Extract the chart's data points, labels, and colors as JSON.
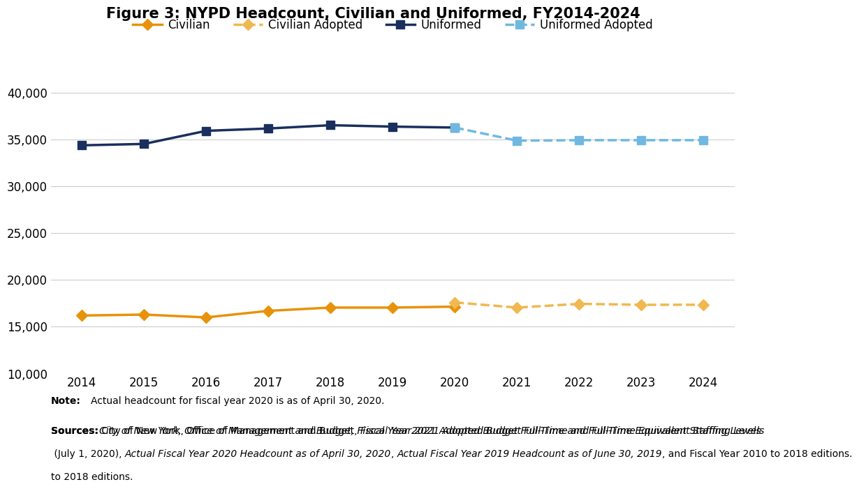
{
  "title": "Figure 3: NYPD Headcount, Civilian and Uniformed, FY2014-2024",
  "civilian_years": [
    2014,
    2015,
    2016,
    2017,
    2018,
    2019,
    2020
  ],
  "civilian_values": [
    16200,
    16300,
    16000,
    16700,
    17050,
    17050,
    17150
  ],
  "civilian_adopted_years": [
    2020,
    2021,
    2022,
    2023,
    2024
  ],
  "civilian_adopted_values": [
    17600,
    17050,
    17450,
    17350,
    17350
  ],
  "uniformed_years": [
    2014,
    2015,
    2016,
    2017,
    2018,
    2019,
    2020
  ],
  "uniformed_values": [
    34400,
    34550,
    35950,
    36200,
    36550,
    36400,
    36300
  ],
  "uniformed_adopted_years": [
    2020,
    2021,
    2022,
    2023,
    2024
  ],
  "uniformed_adopted_values": [
    36300,
    34900,
    34950,
    34950,
    34950
  ],
  "civilian_color": "#E8920A",
  "civilian_adopted_color": "#F0B850",
  "uniformed_color": "#1A2F5E",
  "uniformed_adopted_color": "#70B8E0",
  "ylim": [
    10000,
    42000
  ],
  "yticks": [
    10000,
    15000,
    20000,
    25000,
    30000,
    35000,
    40000
  ],
  "xticks": [
    2014,
    2015,
    2016,
    2017,
    2018,
    2019,
    2020,
    2021,
    2022,
    2023,
    2024
  ],
  "bg_color": "#FFFFFF",
  "grid_color": "#CCCCCC",
  "marker_size": 8,
  "linewidth": 2.5,
  "note_bold": "Note:",
  "note_normal": " Actual headcount for fiscal year 2020 is as of April 30, 2020.",
  "sources_bold": "Sources:",
  "sources_normal1": " City of New York, Office of Management and Budget, ",
  "sources_italic1": "Fiscal Year 2021 Adopted Budget Full-Time and Full-Time Equivalent Staffing Levels",
  "sources_normal2": " (July 1, 2020), ",
  "sources_italic2": "Actual Fiscal Year 2020 Headcount as of April 30, 2020",
  "sources_normal3": ", ",
  "sources_italic3": "Actual Fiscal Year 2019 Headcount as of June 30, 2019",
  "sources_normal4": ", and Fiscal Year 2010 to 2018 editions."
}
